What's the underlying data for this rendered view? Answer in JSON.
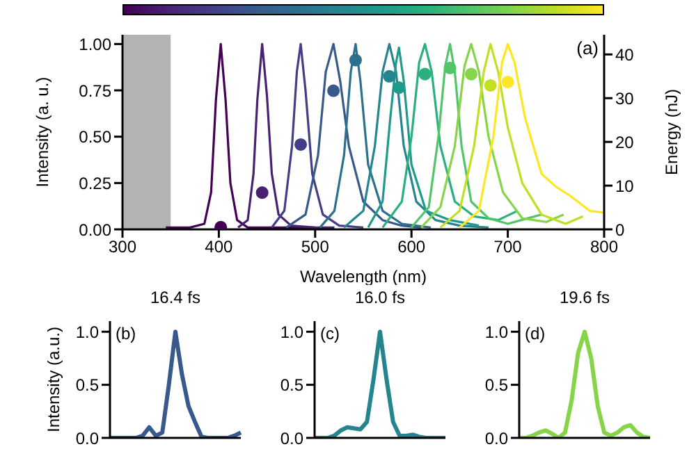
{
  "chart_data": [
    {
      "type": "line",
      "xlabel": "Wavelength (nm)",
      "ylabel": "Intensity (a. u.)",
      "y2label": "Energy (nJ)",
      "annotations": [
        "(a)"
      ],
      "xlim": [
        300,
        800
      ],
      "xticks": [
        300,
        400,
        500,
        600,
        700,
        800
      ],
      "ylim": [
        0,
        1.05
      ],
      "yticks": [
        {
          "value": 0,
          "label": "0.00"
        },
        {
          "value": 0.25,
          "label": "0.25"
        },
        {
          "value": 0.5,
          "label": "0.50"
        },
        {
          "value": 0.75,
          "label": "0.75"
        },
        {
          "value": 1,
          "label": "1.00"
        }
      ],
      "y2lim": [
        0,
        44.5
      ],
      "y2ticks": [
        0,
        10,
        20,
        30,
        40
      ],
      "bands": [
        {
          "axis": "x",
          "from": 300,
          "to": 350,
          "color": "#b3b3b3"
        }
      ],
      "grid": false,
      "marker": "none",
      "series": [
        {
          "color": "#440154",
          "x": [
            345,
            370,
            385,
            392,
            397,
            402,
            407,
            412,
            419,
            430,
            450,
            480,
            500
          ],
          "values": [
            0.01,
            0.01,
            0.03,
            0.2,
            0.7,
            1.0,
            0.7,
            0.25,
            0.05,
            0.01,
            0.01,
            0.01,
            0.01
          ]
        },
        {
          "color": "#482173",
          "x": [
            420,
            430,
            436,
            440,
            445,
            450,
            455,
            462,
            475,
            500,
            520
          ],
          "values": [
            0.01,
            0.05,
            0.3,
            0.7,
            1.0,
            0.72,
            0.3,
            0.08,
            0.02,
            0.01,
            0.01
          ]
        },
        {
          "color": "#433e85",
          "x": [
            455,
            468,
            476,
            481,
            485,
            490,
            497,
            508,
            525,
            550
          ],
          "values": [
            0.01,
            0.1,
            0.45,
            0.85,
            1.0,
            0.75,
            0.3,
            0.08,
            0.02,
            0.01
          ]
        },
        {
          "color": "#38598c",
          "x": [
            470,
            490,
            503,
            511,
            519,
            526,
            535,
            550,
            570,
            590,
            610
          ],
          "values": [
            0.01,
            0.08,
            0.4,
            0.85,
            1.0,
            0.8,
            0.45,
            0.15,
            0.05,
            0.02,
            0.01
          ]
        },
        {
          "color": "#2d708e",
          "x": [
            505,
            520,
            530,
            537,
            542,
            547,
            555,
            570,
            590,
            620
          ],
          "values": [
            0.01,
            0.1,
            0.4,
            0.85,
            1.0,
            0.8,
            0.35,
            0.1,
            0.03,
            0.01
          ]
        },
        {
          "color": "#25858e",
          "x": [
            530,
            550,
            562,
            570,
            577,
            584,
            592,
            605,
            625,
            650,
            680
          ],
          "values": [
            0.01,
            0.1,
            0.45,
            0.85,
            1.0,
            0.85,
            0.45,
            0.15,
            0.05,
            0.02,
            0.01
          ]
        },
        {
          "color": "#1e9b8a",
          "x": [
            555,
            570,
            578,
            584,
            587,
            592,
            600,
            615,
            640,
            670
          ],
          "values": [
            0.01,
            0.15,
            0.6,
            0.9,
            0.98,
            0.8,
            0.35,
            0.1,
            0.05,
            0.02
          ]
        },
        {
          "color": "#2ab07f",
          "x": [
            570,
            590,
            600,
            608,
            614,
            621,
            630,
            645,
            665,
            690,
            710
          ],
          "values": [
            0.01,
            0.15,
            0.5,
            0.9,
            1.0,
            0.85,
            0.45,
            0.15,
            0.07,
            0.05,
            0.1
          ]
        },
        {
          "color": "#52c569",
          "x": [
            600,
            618,
            628,
            635,
            640,
            645,
            652,
            662,
            680,
            700,
            735
          ],
          "values": [
            0.01,
            0.12,
            0.5,
            0.88,
            1.0,
            0.85,
            0.45,
            0.15,
            0.06,
            0.03,
            0.08
          ]
        },
        {
          "color": "#86d549",
          "x": [
            610,
            630,
            645,
            655,
            662,
            670,
            680,
            695,
            715,
            740,
            758
          ],
          "values": [
            0.01,
            0.12,
            0.45,
            0.88,
            1.0,
            0.85,
            0.5,
            0.2,
            0.06,
            0.04,
            0.08
          ]
        },
        {
          "color": "#c2df23",
          "x": [
            630,
            650,
            665,
            675,
            682,
            690,
            700,
            715,
            735,
            760,
            778
          ],
          "values": [
            0.01,
            0.1,
            0.45,
            0.85,
            1.0,
            0.85,
            0.55,
            0.25,
            0.08,
            0.03,
            0.07
          ]
        },
        {
          "color": "#fde725",
          "x": [
            650,
            670,
            685,
            694,
            700,
            707,
            718,
            735,
            750,
            765,
            785,
            800
          ],
          "values": [
            0.01,
            0.1,
            0.5,
            0.9,
            1.0,
            0.9,
            0.6,
            0.3,
            0.23,
            0.18,
            0.1,
            0.09
          ]
        },
        {
          "type": "scatter",
          "axis": "y2",
          "marker": "circle",
          "x": [
            402,
            445,
            485,
            519,
            542,
            577,
            587,
            614,
            640,
            662,
            682,
            700
          ],
          "values": [
            0.5,
            8.4,
            19.4,
            31.7,
            38.7,
            35.0,
            32.4,
            35.5,
            36.9,
            35.5,
            32.9,
            33.7
          ],
          "colors": [
            "#440154",
            "#482173",
            "#433e85",
            "#38598c",
            "#2d708e",
            "#25858e",
            "#1e9b8a",
            "#2ab07f",
            "#52c569",
            "#86d549",
            "#c2df23",
            "#fde725"
          ]
        }
      ]
    },
    {
      "type": "line",
      "title": "16.4 fs",
      "ylabel": "Intensity (a.u.)",
      "annotations": [
        "(b)"
      ],
      "tick_labels": "y",
      "categories": [
        null,
        null,
        null,
        null,
        null,
        null,
        null,
        null,
        null,
        null,
        null,
        null,
        null,
        null,
        null,
        null,
        null,
        null,
        null,
        null,
        null
      ],
      "ylim": [
        0,
        1.1
      ],
      "yticks": [
        {
          "value": 0,
          "label": "0.0"
        },
        {
          "value": 0.5,
          "label": "0.5"
        },
        {
          "value": 1,
          "label": "1.0"
        }
      ],
      "grid": false,
      "marker": "none",
      "series": [
        {
          "color": "#38598c",
          "values": [
            0,
            0,
            0,
            0,
            0,
            0.02,
            0.1,
            0.02,
            0.05,
            0.5,
            1.0,
            0.6,
            0.3,
            0.15,
            0.01,
            0,
            0,
            0,
            0,
            0.02,
            0.05
          ]
        }
      ]
    },
    {
      "type": "line",
      "title": "16.0 fs",
      "annotations": [
        "(c)"
      ],
      "tick_labels": "y",
      "categories": [
        null,
        null,
        null,
        null,
        null,
        null,
        null,
        null,
        null,
        null,
        null,
        null,
        null,
        null,
        null,
        null,
        null,
        null,
        null,
        null,
        null
      ],
      "ylim": [
        0,
        1.1
      ],
      "yticks": [
        {
          "value": 0,
          "label": "0.0"
        },
        {
          "value": 0.5,
          "label": "0.5"
        },
        {
          "value": 1,
          "label": "1.0"
        }
      ],
      "grid": false,
      "marker": "none",
      "series": [
        {
          "color": "#25858e",
          "values": [
            0,
            0,
            0,
            0.02,
            0.07,
            0.1,
            0.09,
            0.08,
            0.15,
            0.55,
            1.0,
            0.55,
            0.15,
            0.02,
            0.02,
            0.03,
            0.01,
            0,
            0,
            0,
            0
          ]
        }
      ]
    },
    {
      "type": "line",
      "title": "19.6 fs",
      "annotations": [
        "(d)"
      ],
      "tick_labels": "y",
      "categories": [
        null,
        null,
        null,
        null,
        null,
        null,
        null,
        null,
        null,
        null,
        null,
        null,
        null,
        null,
        null,
        null,
        null,
        null,
        null,
        null,
        null
      ],
      "ylim": [
        0,
        1.1
      ],
      "yticks": [
        {
          "value": 0,
          "label": "0.0"
        },
        {
          "value": 0.5,
          "label": "0.5"
        },
        {
          "value": 1,
          "label": "1.0"
        }
      ],
      "grid": false,
      "marker": "none",
      "series": [
        {
          "color": "#86d549",
          "values": [
            0,
            0,
            0.02,
            0.05,
            0.07,
            0.04,
            0,
            0.05,
            0.35,
            0.8,
            1.0,
            0.75,
            0.3,
            0.05,
            0.02,
            0.05,
            0.1,
            0.12,
            0.05,
            0.01,
            0
          ]
        }
      ]
    }
  ]
}
